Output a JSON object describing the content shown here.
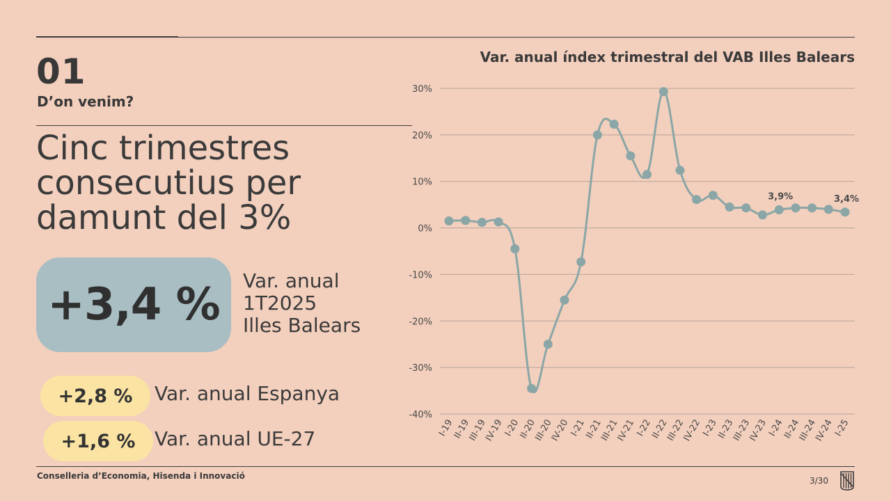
{
  "section": {
    "number": "01",
    "subtitle": "D’on venim?"
  },
  "headline": "Cinc trimestres consecutius per damunt del 3%",
  "main_stat": {
    "value": "+3,4 %",
    "label_lines": [
      "Var. anual",
      "1T2025",
      "Illes Balears"
    ]
  },
  "comparisons": [
    {
      "value": "+2,8 %",
      "label": "Var. anual Espanya"
    },
    {
      "value": "+1,6 %",
      "label": "Var. anual UE-27"
    }
  ],
  "footer": {
    "organization": "Conselleria d’Economia, Hisenda i Innovació",
    "page": "3/30"
  },
  "colors": {
    "background": "#f3cfbd",
    "line": "#8aa6a6",
    "main_pill": "#a8bec3",
    "small_pill": "#fbe4a3"
  },
  "chart_data": {
    "type": "line",
    "title": "Var. anual índex trimestral del VAB Illes Balears",
    "xlabel": "",
    "ylabel": "",
    "ylim": [
      -40,
      30
    ],
    "yticks": [
      30,
      20,
      10,
      0,
      -10,
      -20,
      -30,
      -40
    ],
    "ytick_labels": [
      "30%",
      "20%",
      "10%",
      "0%",
      "-10%",
      "-20%",
      "-30%",
      "-40%"
    ],
    "grid": true,
    "categories": [
      "I-19",
      "II-19",
      "III-19",
      "IV-19",
      "I-20",
      "II-20",
      "III-20",
      "IV-20",
      "I-21",
      "II-21",
      "III-21",
      "IV-21",
      "I-22",
      "II-22",
      "III-22",
      "IV-22",
      "I-23",
      "II-23",
      "III-23",
      "IV-23",
      "I-24",
      "II-24",
      "III-24",
      "IV-24",
      "I-25"
    ],
    "series": [
      {
        "values": [
          1.5,
          1.6,
          1.2,
          1.3,
          -4.5,
          -34.5,
          -25.0,
          -15.5,
          -7.3,
          20.0,
          22.3,
          15.5,
          11.5,
          29.3,
          12.4,
          6.1,
          7.0,
          4.5,
          4.3,
          2.8,
          3.9,
          4.3,
          4.3,
          4.0,
          3.4
        ]
      }
    ],
    "annotations": [
      {
        "index": 20,
        "text": "3,9%"
      },
      {
        "index": 24,
        "text": "3,4%"
      }
    ]
  }
}
